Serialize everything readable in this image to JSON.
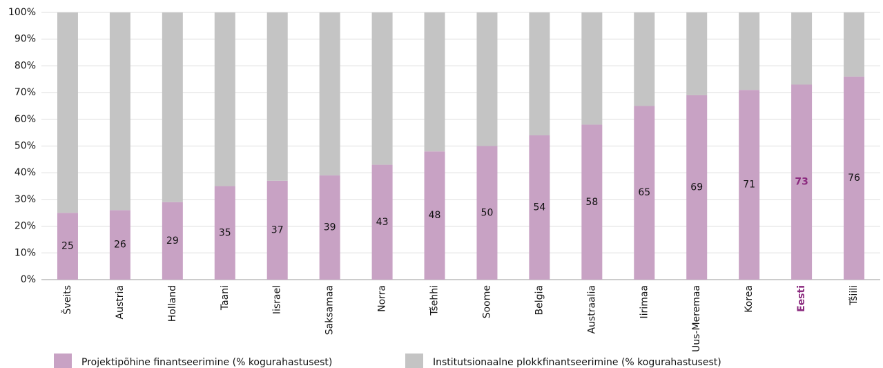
{
  "chart_data": {
    "type": "stacked_bar",
    "categories": [
      "Šveits",
      "Austria",
      "Holland",
      "Taani",
      "Iisrael",
      "Saksamaa",
      "Norra",
      "Tšehhi",
      "Soome",
      "Belgia",
      "Austraalia",
      "Iirimaa",
      "Uus-Meremaa",
      "Korea",
      "Eesti",
      "Tšiili"
    ],
    "series": [
      {
        "name": "Projektipõhine finantseerimine (% kogurahastusest)",
        "color": "#c8a2c4",
        "labels": true,
        "values": [
          25,
          26,
          29,
          35,
          37,
          39,
          43,
          48,
          50,
          54,
          58,
          65,
          69,
          71,
          73,
          76
        ]
      },
      {
        "name": "Institutsionaalne plokkfinantseerimine (% kogurahastusest)",
        "color": "#c4c4c4",
        "labels": false,
        "values": [
          75,
          74,
          71,
          65,
          63,
          61,
          57,
          52,
          50,
          46,
          42,
          35,
          31,
          29,
          27,
          24
        ]
      }
    ],
    "ylim": [
      0,
      100
    ],
    "yticks": [
      {
        "value": 0,
        "label": "0%"
      },
      {
        "value": 10,
        "label": "10%"
      },
      {
        "value": 20,
        "label": "20%"
      },
      {
        "value": 30,
        "label": "30%"
      },
      {
        "value": 40,
        "label": "40%"
      },
      {
        "value": 50,
        "label": "50%"
      },
      {
        "value": 60,
        "label": "60%"
      },
      {
        "value": 70,
        "label": "70%"
      },
      {
        "value": 80,
        "label": "80%"
      },
      {
        "value": 90,
        "label": "90%"
      },
      {
        "value": 100,
        "label": "100%"
      }
    ],
    "grid": true,
    "highlight": 14,
    "highlight_color": "#8b2a7e",
    "legend": "bottom"
  }
}
